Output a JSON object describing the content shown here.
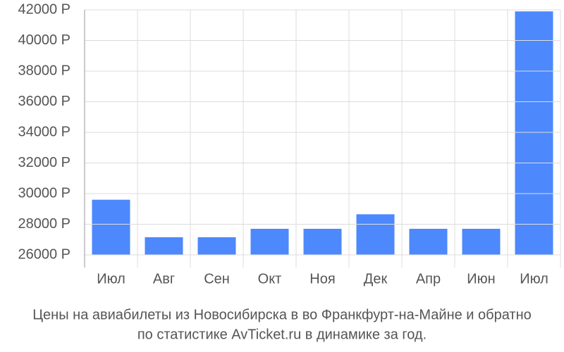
{
  "chart_data": {
    "type": "bar",
    "title": [
      "Цены на авиабилеты из Новосибирска в во Франкфурт-на-Майне и обратно",
      "по статистике AvTicket.ru в динамике за год."
    ],
    "categories": [
      "Июл",
      "Авг",
      "Сен",
      "Окт",
      "Ноя",
      "Дек",
      "Апр",
      "Июн",
      "Июл"
    ],
    "values": [
      29600,
      27150,
      27150,
      27700,
      27700,
      28650,
      27700,
      27700,
      41900
    ],
    "color": "#4d88fc",
    "ylim": [
      26000,
      42000
    ],
    "yticks": [
      {
        "value": 26000,
        "label": "26000 Р"
      },
      {
        "value": 28000,
        "label": "28000 Р"
      },
      {
        "value": 30000,
        "label": "30000 Р"
      },
      {
        "value": 32000,
        "label": "32000 Р"
      },
      {
        "value": 34000,
        "label": "34000 Р"
      },
      {
        "value": 36000,
        "label": "36000 Р"
      },
      {
        "value": 38000,
        "label": "38000 Р"
      },
      {
        "value": 40000,
        "label": "40000 Р"
      },
      {
        "value": 42000,
        "label": "42000 Р"
      }
    ],
    "grid": true
  }
}
